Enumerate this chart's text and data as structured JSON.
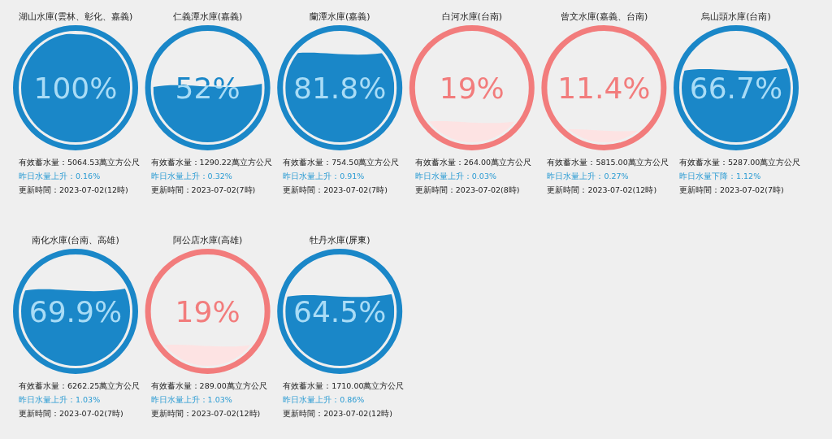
{
  "chart_data": [
    {
      "type": "other",
      "title": "湖山水庫(雲林、彰化、嘉義)",
      "values": [
        100
      ],
      "value_labels": [
        "100%"
      ],
      "color": "#1a87c8",
      "colors": [
        "#1a87c8"
      ],
      "annotations": [
        "有效蓄水量：5064.53萬立方公尺",
        "昨日水量上升：0.16%",
        "更新時間：2023-07-02(12時)"
      ]
    },
    {
      "type": "other",
      "title": "仁義潭水庫(嘉義)",
      "values": [
        52
      ],
      "value_labels": [
        "52%"
      ],
      "color": "#1a87c8",
      "colors": [
        "#1a87c8"
      ],
      "annotations": [
        "有效蓄水量：1290.22萬立方公尺",
        "昨日水量上升：0.32%",
        "更新時間：2023-07-02(7時)"
      ]
    },
    {
      "type": "other",
      "title": "蘭潭水庫(嘉義)",
      "values": [
        81.8
      ],
      "value_labels": [
        "81.8%"
      ],
      "color": "#1a87c8",
      "colors": [
        "#1a87c8"
      ],
      "annotations": [
        "有效蓄水量：754.50萬立方公尺",
        "昨日水量上升：0.91%",
        "更新時間：2023-07-02(7時)"
      ]
    },
    {
      "type": "other",
      "title": "白河水庫(台南)",
      "values": [
        19
      ],
      "value_labels": [
        "19%"
      ],
      "color": "#f27c7c",
      "colors": [
        "#fde3e3"
      ],
      "annotations": [
        "有效蓄水量：264.00萬立方公尺",
        "昨日水量上升：0.03%",
        "更新時間：2023-07-02(8時)"
      ]
    },
    {
      "type": "other",
      "title": "曾文水庫(嘉義、台南)",
      "values": [
        11.4
      ],
      "value_labels": [
        "11.4%"
      ],
      "color": "#f27c7c",
      "colors": [
        "#fde3e3"
      ],
      "annotations": [
        "有效蓄水量：5815.00萬立方公尺",
        "昨日水量上升：0.27%",
        "更新時間：2023-07-02(12時)"
      ]
    },
    {
      "type": "other",
      "title": "烏山頭水庫(台南)",
      "values": [
        66.7
      ],
      "value_labels": [
        "66.7%"
      ],
      "color": "#1a87c8",
      "colors": [
        "#1a87c8"
      ],
      "annotations": [
        "有效蓄水量：5287.00萬立方公尺",
        "昨日水量下降：1.12%",
        "更新時間：2023-07-02(7時)"
      ]
    },
    {
      "type": "other",
      "title": "南化水庫(台南、高雄)",
      "values": [
        69.9
      ],
      "value_labels": [
        "69.9%"
      ],
      "color": "#1a87c8",
      "colors": [
        "#1a87c8"
      ],
      "annotations": [
        "有效蓄水量：6262.25萬立方公尺",
        "昨日水量上升：1.03%",
        "更新時間：2023-07-02(7時)"
      ]
    },
    {
      "type": "other",
      "title": "阿公店水庫(高雄)",
      "values": [
        19
      ],
      "value_labels": [
        "19%"
      ],
      "color": "#f27c7c",
      "colors": [
        "#fde3e3"
      ],
      "annotations": [
        "有效蓄水量：289.00萬立方公尺",
        "昨日水量上升：1.03%",
        "更新時間：2023-07-02(12時)"
      ]
    },
    {
      "type": "other",
      "title": "牡丹水庫(屏東)",
      "values": [
        64.5
      ],
      "value_labels": [
        "64.5%"
      ],
      "color": "#1a87c8",
      "colors": [
        "#1a87c8"
      ],
      "annotations": [
        "有效蓄水量：1710.00萬立方公尺",
        "昨日水量上升：0.86%",
        "更新時間：2023-07-02(12時)"
      ]
    }
  ]
}
